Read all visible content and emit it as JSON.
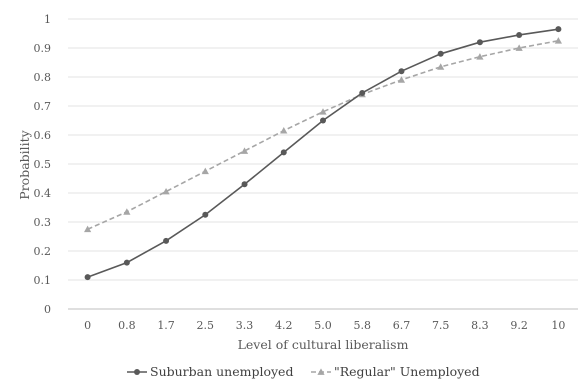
{
  "chart_data": {
    "type": "line",
    "title": "",
    "xlabel": "Level of cultural liberalism",
    "ylabel": "Probability",
    "categories": [
      "0",
      "0.8",
      "1.7",
      "2.5",
      "3.3",
      "4.2",
      "5.0",
      "5.8",
      "6.7",
      "7.5",
      "8.3",
      "9.2",
      "10"
    ],
    "ylim": [
      0,
      1
    ],
    "yticks": [
      "0",
      "0.1",
      "0.2",
      "0.3",
      "0.4",
      "0.5",
      "0.6",
      "0.7",
      "0.8",
      "0.9",
      "1"
    ],
    "grid": true,
    "legend_position": "bottom",
    "series": [
      {
        "name": "Suburban unemployed",
        "color": "#595959",
        "line_style": "solid",
        "marker": "circle",
        "values": [
          0.11,
          0.16,
          0.235,
          0.325,
          0.43,
          0.54,
          0.65,
          0.745,
          0.82,
          0.88,
          0.92,
          0.945,
          0.965
        ]
      },
      {
        "name": "\"Regular\" Unemployed",
        "color": "#a6a6a6",
        "line_style": "dashed",
        "marker": "triangle",
        "values": [
          0.275,
          0.335,
          0.405,
          0.475,
          0.545,
          0.615,
          0.68,
          0.74,
          0.79,
          0.835,
          0.87,
          0.9,
          0.925
        ]
      }
    ]
  }
}
